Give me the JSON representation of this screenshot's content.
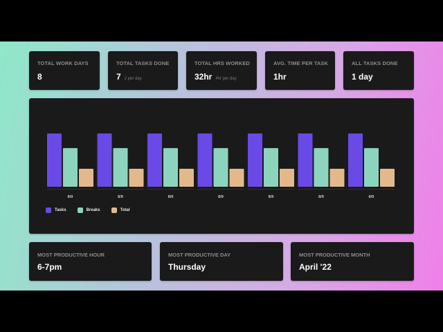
{
  "stats": [
    {
      "label": "TOTAL WORK DAYS",
      "value": "8",
      "sub": ""
    },
    {
      "label": "TOTAL TASKS DONE",
      "value": "7",
      "sub": "2 per day"
    },
    {
      "label": "TOTAL HRS WORKED",
      "value": "32hr",
      "sub": "4hr per day"
    },
    {
      "label": "AVG. TIME PER TASK",
      "value": "1hr",
      "sub": ""
    },
    {
      "label": "ALL TASKS DONE",
      "value": "1 day",
      "sub": ""
    }
  ],
  "productive": [
    {
      "label": "MOST PRODUCTIVE HOUR",
      "value": "6-7pm"
    },
    {
      "label": "MOST PRODUCTIVE DAY",
      "value": "Thursday"
    },
    {
      "label": "MOST PRODUCTIVE MONTH",
      "value": "April '22"
    }
  ],
  "colors": {
    "tasks": "#6a4ae6",
    "breaks": "#8dd4bf",
    "total": "#e3b98c"
  },
  "chart_data": {
    "type": "bar",
    "categories": [
      "8/9",
      "8/9",
      "8/9",
      "8/9",
      "8/9",
      "8/9",
      "8/9"
    ],
    "series": [
      {
        "name": "Tasks",
        "values": [
          8,
          8,
          8,
          8,
          8,
          8,
          8
        ]
      },
      {
        "name": "Breaks",
        "values": [
          5.8,
          5.8,
          5.8,
          5.8,
          5.8,
          5.8,
          5.8
        ]
      },
      {
        "name": "Total",
        "values": [
          2.7,
          2.7,
          2.7,
          2.7,
          2.7,
          2.7,
          2.7
        ]
      }
    ],
    "ylim": [
      0,
      8
    ],
    "legend": "bottom-left",
    "grid": false,
    "title": "",
    "xlabel": "",
    "ylabel": ""
  }
}
